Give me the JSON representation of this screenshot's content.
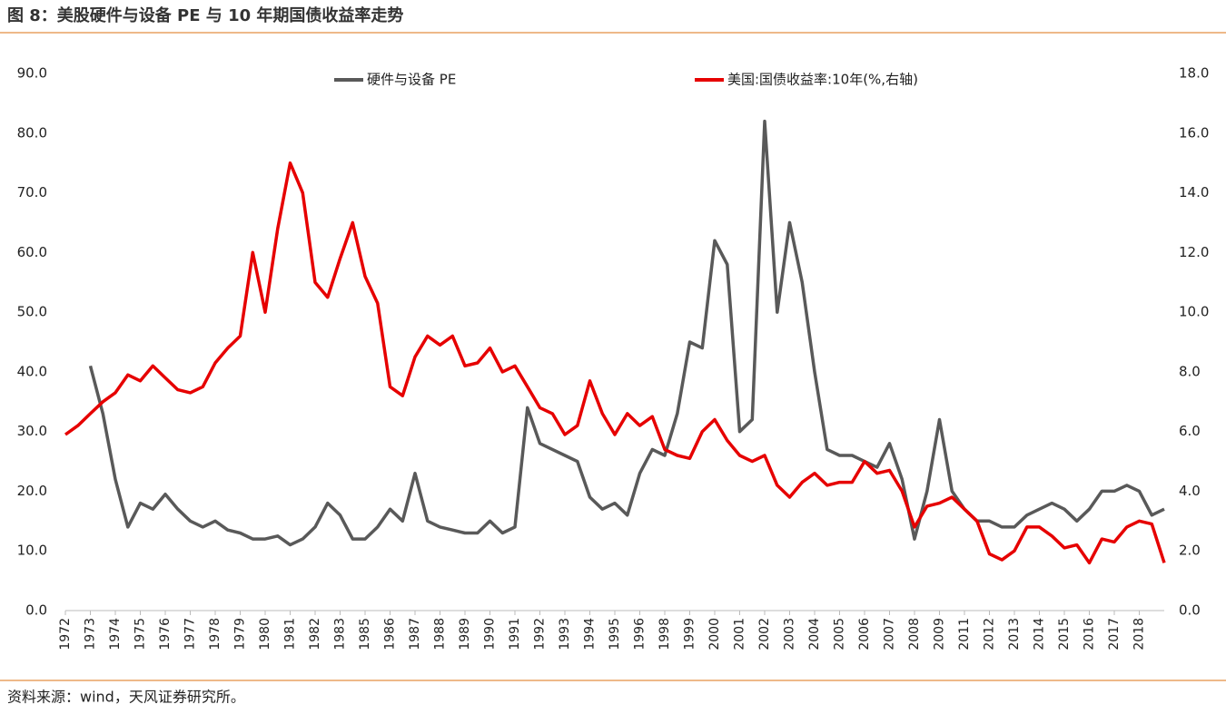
{
  "chart_data": {
    "type": "line",
    "title": "图 8：美股硬件与设备 PE 与 10 年期国债收益率走势",
    "source": "资料来源：wind，天风证券研究所。",
    "categories": [
      "1972",
      null,
      "1973",
      null,
      "1974",
      null,
      "1975",
      null,
      "1976",
      null,
      "1977",
      null,
      "1978",
      null,
      "1979",
      null,
      "1980",
      null,
      "1981",
      null,
      "1982",
      null,
      "1983",
      null,
      "1985",
      null,
      "1986",
      null,
      "1987",
      null,
      "1988",
      null,
      "1989",
      null,
      "1990",
      null,
      "1991",
      null,
      "1992",
      null,
      "1993",
      null,
      "1994",
      null,
      "1995",
      null,
      "1996",
      null,
      "1998",
      null,
      "1999",
      null,
      "2000",
      null,
      "2001",
      null,
      "2002",
      null,
      "2003",
      null,
      "2004",
      null,
      "2005",
      null,
      "2006",
      null,
      "2007",
      null,
      "2008",
      null,
      "2009",
      null,
      "2011",
      null,
      "2012",
      null,
      "2013",
      null,
      "2014",
      null,
      "2015",
      null,
      "2016",
      null,
      "2017",
      null,
      "2018",
      null,
      null
    ],
    "series": [
      {
        "name": "硬件与设备 PE",
        "color": "#595959",
        "values": [
          null,
          null,
          41,
          33,
          22,
          14,
          18,
          17,
          19.5,
          17,
          15,
          14,
          15,
          13.5,
          13,
          12,
          12,
          12.5,
          11,
          12,
          14,
          18,
          16,
          12,
          12,
          14,
          17,
          15,
          23,
          15,
          14,
          13.5,
          13,
          13,
          15,
          13,
          14,
          34,
          28,
          27,
          26,
          25,
          19,
          17,
          18,
          16,
          23,
          27,
          26,
          33,
          45,
          44,
          62,
          58,
          30,
          32,
          82,
          50,
          65,
          55,
          40,
          27,
          26,
          26,
          25,
          24,
          28,
          22,
          12,
          20,
          32,
          20,
          17,
          15,
          15,
          14,
          14,
          16,
          17,
          18,
          17,
          15,
          17,
          20,
          20,
          21,
          20,
          16,
          17
        ]
      },
      {
        "name": "美国:国债收益率:10年(%,右轴)",
        "color": "#e60000",
        "axis": "y2",
        "values": [
          5.9,
          6.2,
          6.6,
          7.0,
          7.3,
          7.9,
          7.7,
          8.2,
          7.8,
          7.4,
          7.3,
          7.5,
          8.3,
          8.8,
          9.2,
          12.0,
          10.0,
          12.8,
          15.0,
          14.0,
          11.0,
          10.5,
          11.8,
          13.0,
          11.2,
          10.3,
          7.5,
          7.2,
          8.5,
          9.2,
          8.9,
          9.2,
          8.2,
          8.3,
          8.8,
          8.0,
          8.2,
          7.5,
          6.8,
          6.6,
          5.9,
          6.2,
          7.7,
          6.6,
          5.9,
          6.6,
          6.2,
          6.5,
          5.4,
          5.2,
          5.1,
          6.0,
          6.4,
          5.7,
          5.2,
          5.0,
          5.2,
          4.2,
          3.8,
          4.3,
          4.6,
          4.2,
          4.3,
          4.3,
          5.0,
          4.6,
          4.7,
          4.0,
          2.8,
          3.5,
          3.6,
          3.8,
          3.4,
          3.0,
          1.9,
          1.7,
          2.0,
          2.8,
          2.8,
          2.5,
          2.1,
          2.2,
          1.6,
          2.4,
          2.3,
          2.8,
          3.0,
          2.9,
          1.6
        ]
      }
    ],
    "ylim": [
      0,
      90
    ],
    "yticks": [
      {
        "value": 0,
        "label": "0.0"
      },
      {
        "value": 10,
        "label": "10.0"
      },
      {
        "value": 20,
        "label": "20.0"
      },
      {
        "value": 30,
        "label": "30.0"
      },
      {
        "value": 40,
        "label": "40.0"
      },
      {
        "value": 50,
        "label": "50.0"
      },
      {
        "value": 60,
        "label": "60.0"
      },
      {
        "value": 70,
        "label": "70.0"
      },
      {
        "value": 80,
        "label": "80.0"
      },
      {
        "value": 90,
        "label": "90.0"
      }
    ],
    "y2lim": [
      0,
      18
    ],
    "y2ticks": [
      {
        "value": 0,
        "label": "0.0"
      },
      {
        "value": 2,
        "label": "2.0"
      },
      {
        "value": 4,
        "label": "4.0"
      },
      {
        "value": 6,
        "label": "6.0"
      },
      {
        "value": 8,
        "label": "8.0"
      },
      {
        "value": 10,
        "label": "10.0"
      },
      {
        "value": 12,
        "label": "12.0"
      },
      {
        "value": 14,
        "label": "14.0"
      },
      {
        "value": 16,
        "label": "16.0"
      },
      {
        "value": 18,
        "label": "18.0"
      }
    ]
  }
}
